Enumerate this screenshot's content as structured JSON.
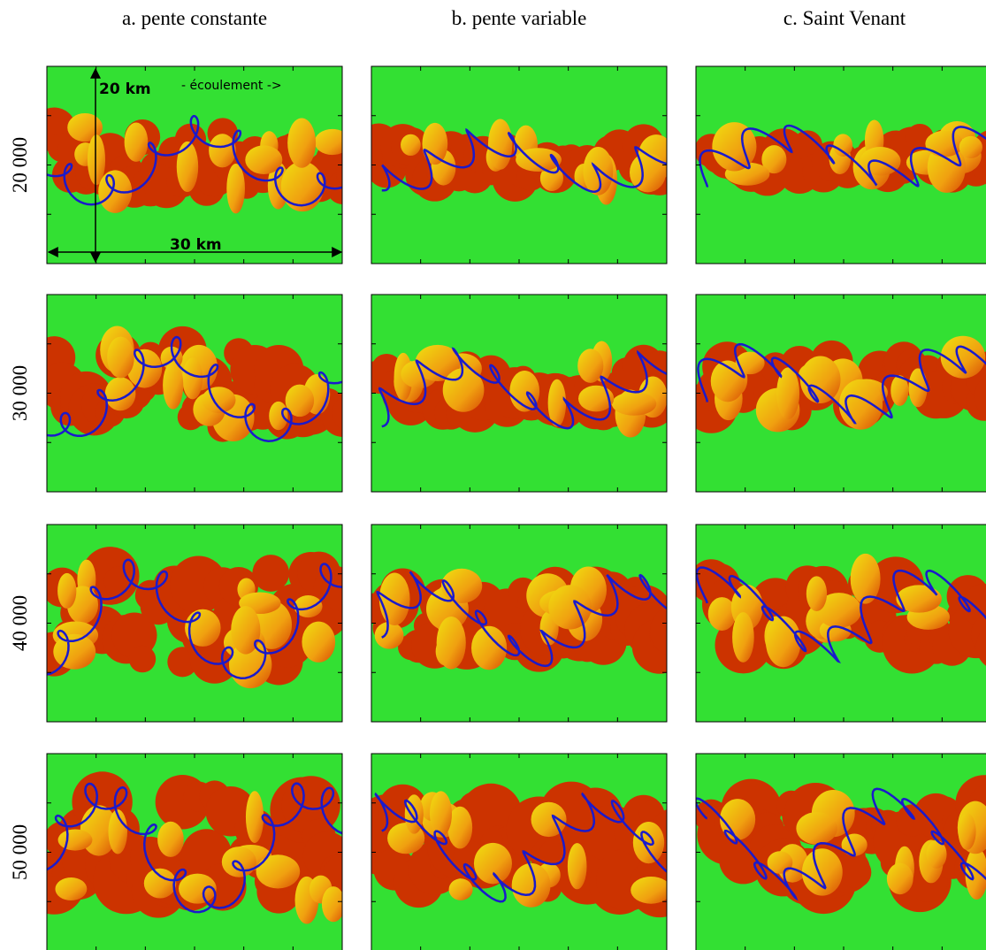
{
  "columns": [
    "a. pente constante",
    "b. pente variable",
    "c. Saint Venant"
  ],
  "rows": [
    "20 000",
    "30 000",
    "40 000",
    "50 000"
  ],
  "annotations": {
    "height": "20 km",
    "flow": "- écoulement ->",
    "width": "30 km"
  }
}
